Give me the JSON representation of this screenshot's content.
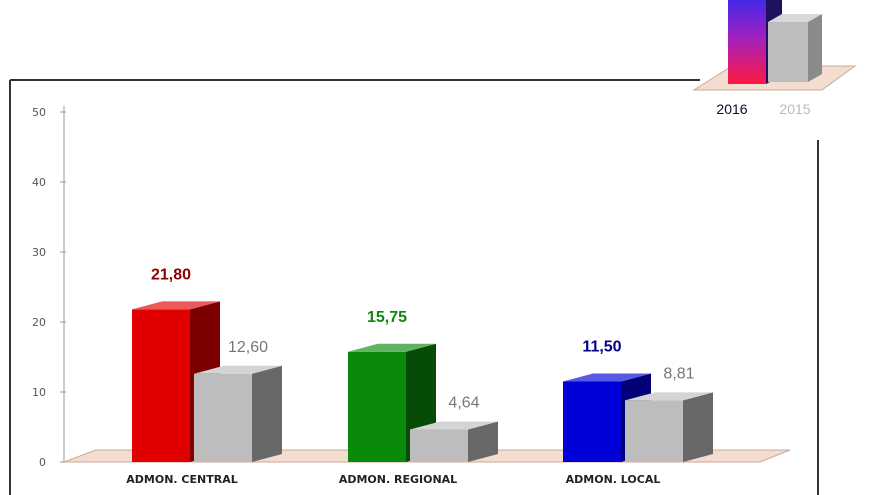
{
  "chart_data": {
    "type": "bar",
    "categories": [
      "ADMON. CENTRAL",
      "ADMON. REGIONAL",
      "ADMON. LOCAL"
    ],
    "series": [
      {
        "name": "2016",
        "values": [
          21.8,
          15.75,
          11.5
        ],
        "labels": [
          "21,80",
          "15,75",
          "11,50"
        ],
        "colors": [
          "#e00000",
          "#0a8a0a",
          "#0000d8"
        ],
        "label_colors": [
          "#8b0000",
          "#0a8a0a",
          "#00008b"
        ]
      },
      {
        "name": "2015",
        "values": [
          12.6,
          4.64,
          8.81
        ],
        "labels": [
          "12,60",
          "4,64",
          "8,81"
        ],
        "colors": [
          "#bdbdbd",
          "#bdbdbd",
          "#bdbdbd"
        ],
        "label_colors": [
          "#777777",
          "#777777",
          "#777777"
        ]
      }
    ],
    "y_ticks": [
      "0",
      "10",
      "20",
      "30",
      "40",
      "50"
    ],
    "ylim": [
      0,
      50
    ],
    "legend_position": "top-right",
    "legend_colors": {
      "2016": "#cc33aa",
      "2015": "#bdbdbd"
    }
  }
}
